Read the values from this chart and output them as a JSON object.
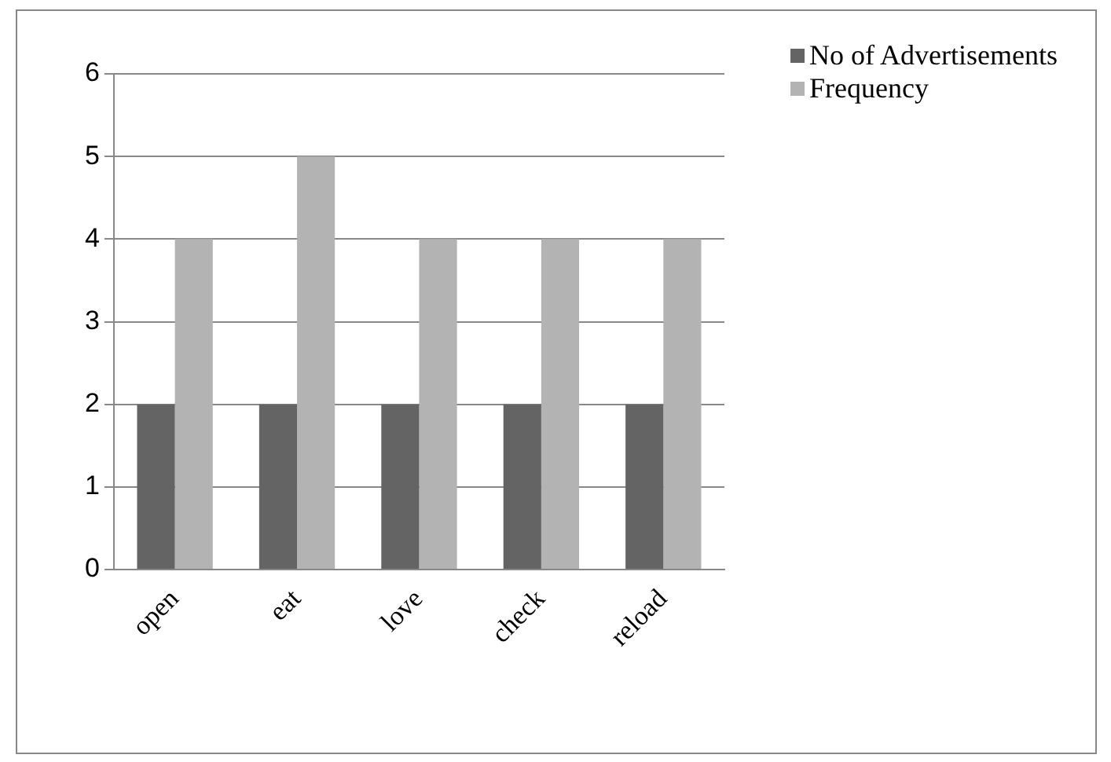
{
  "chart_data": {
    "type": "bar",
    "categories": [
      "open",
      "eat",
      "love",
      "check",
      "reload"
    ],
    "series": [
      {
        "name": "No of Advertisements",
        "color": "#646464",
        "values": [
          2,
          2,
          2,
          2,
          2
        ]
      },
      {
        "name": "Frequency",
        "color": "#b3b3b3",
        "values": [
          4,
          5,
          4,
          4,
          4
        ]
      }
    ],
    "ylim": [
      0,
      6
    ],
    "yticks": [
      0,
      1,
      2,
      3,
      4,
      5,
      6
    ],
    "grid": "y",
    "legend": "top right"
  }
}
